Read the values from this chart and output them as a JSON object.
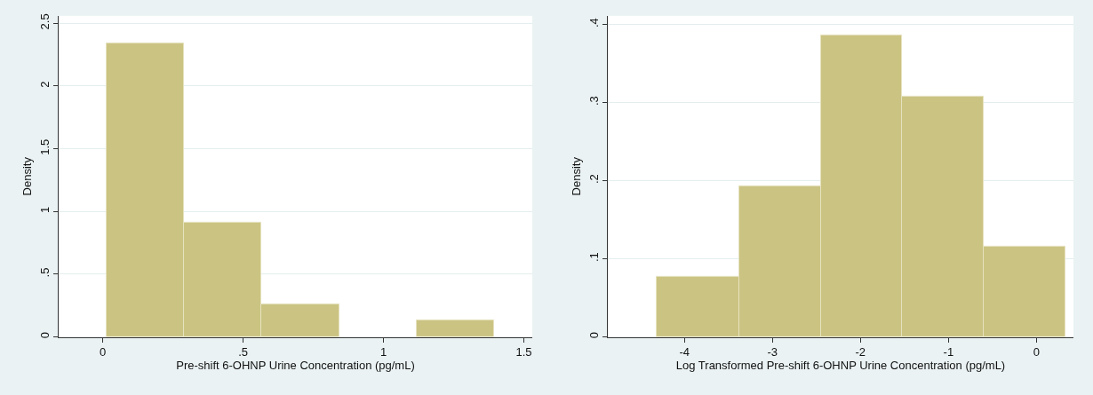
{
  "chart_data": [
    {
      "type": "histogram",
      "xlabel": "Pre-shift 6-OHNP Urine Concentration (pg/mL)",
      "ylabel": "Density",
      "bins": [
        0.013,
        0.289,
        0.566,
        0.842,
        1.118,
        1.394
      ],
      "values": [
        2.34,
        0.91,
        0.26,
        0,
        0.13
      ],
      "color": "#cbc382",
      "xlim": [
        -0.157,
        1.53
      ],
      "xticks": [
        0,
        {
          "value": 0.5,
          "label": ".5"
        },
        1,
        1.5
      ],
      "ylim": [
        0,
        2.56
      ],
      "yticks": [
        0,
        {
          "value": 0.5,
          "label": ".5"
        },
        1,
        1.5,
        2,
        2.5
      ],
      "grid": "y"
    },
    {
      "type": "histogram",
      "xlabel": "Log Transformed Pre-shift 6-OHNP Urine Concentration (pg/mL)",
      "ylabel": "Density",
      "bins": [
        -4.31,
        -3.38,
        -2.45,
        -1.53,
        -0.6,
        0.33
      ],
      "values": [
        0.077,
        0.193,
        0.386,
        0.308,
        0.116
      ],
      "color": "#cbc382",
      "xlim": [
        -4.87,
        0.42
      ],
      "xticks": [
        -4,
        -3,
        -2,
        -1,
        0
      ],
      "ylim": [
        0,
        0.411
      ],
      "yticks": [
        0,
        {
          "value": 0.1,
          "label": ".1"
        },
        {
          "value": 0.2,
          "label": ".2"
        },
        {
          "value": 0.3,
          "label": ".3"
        },
        {
          "value": 0.4,
          "label": ".4"
        }
      ],
      "grid": "y"
    }
  ]
}
